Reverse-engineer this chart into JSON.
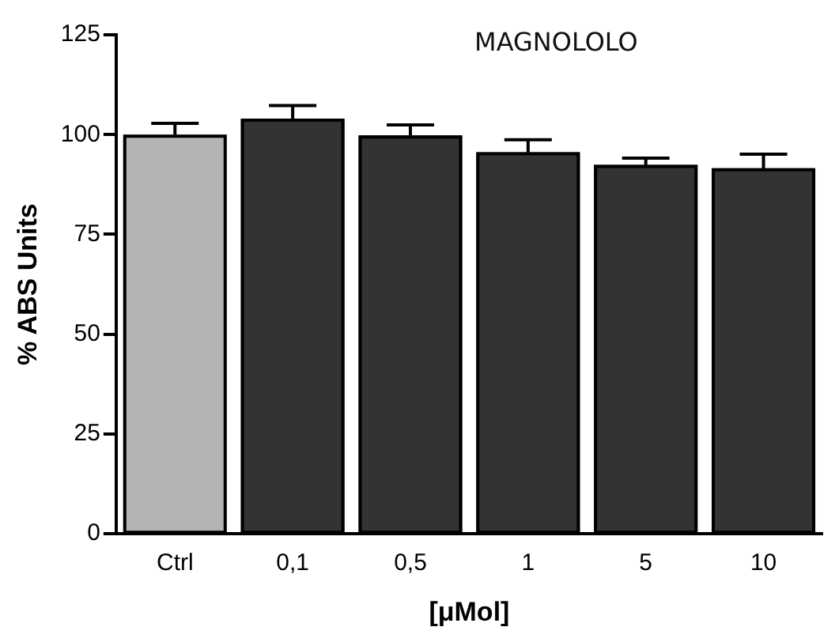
{
  "chart_data": {
    "type": "bar",
    "title": "MAGNOLOLO",
    "xlabel": "[μMol]",
    "ylabel": "% ABS Units",
    "categories": [
      "Ctrl",
      "0,1",
      "0,5",
      "1",
      "5",
      "10"
    ],
    "values": [
      100,
      104,
      99.8,
      95.6,
      92.4,
      91.6
    ],
    "errors": [
      2.8,
      3.3,
      2.6,
      3.1,
      1.7,
      3.5
    ],
    "colors": [
      "#b4b4b4",
      "#333333",
      "#333333",
      "#333333",
      "#333333",
      "#333333"
    ],
    "ylim": [
      0,
      125
    ],
    "yticks": [
      0,
      25,
      50,
      75,
      100,
      125
    ],
    "grid": false,
    "legend": false
  }
}
